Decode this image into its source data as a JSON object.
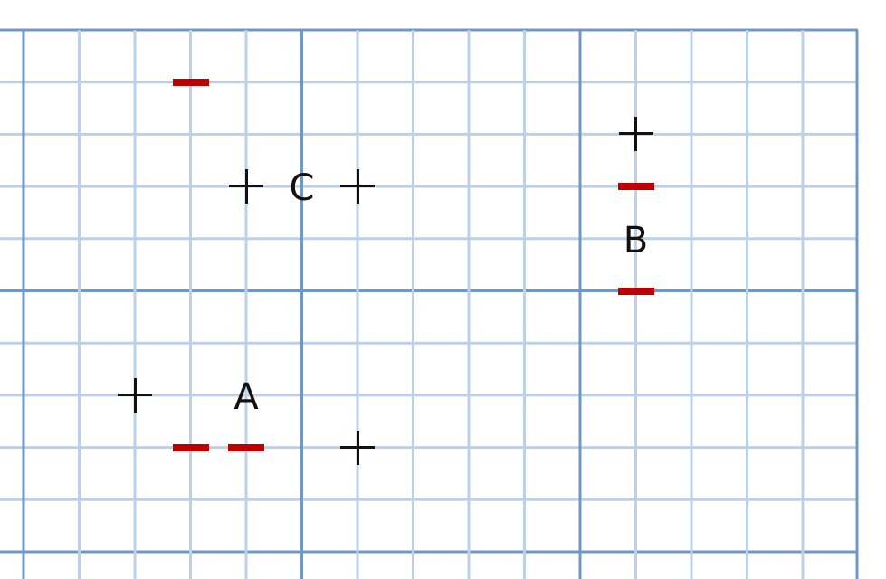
{
  "colors": {
    "grid_fine": "#bcd1e8",
    "grid_major": "#6f98c8",
    "plus": "#111111",
    "minus": "#c00000",
    "label": "#111111"
  },
  "labels": [
    {
      "id": "A",
      "text": "A",
      "col": 4,
      "row": 7
    },
    {
      "id": "B",
      "text": "B",
      "col": 11,
      "row": 4
    },
    {
      "id": "C",
      "text": "C",
      "col": 5,
      "row": 3
    }
  ],
  "charges": [
    {
      "sign": "minus",
      "col": 3,
      "row": 1
    },
    {
      "sign": "plus",
      "col": 4,
      "row": 3
    },
    {
      "sign": "plus",
      "col": 6,
      "row": 3
    },
    {
      "sign": "plus",
      "col": 11,
      "row": 2
    },
    {
      "sign": "minus",
      "col": 11,
      "row": 3
    },
    {
      "sign": "minus",
      "col": 11,
      "row": 5
    },
    {
      "sign": "plus",
      "col": 2,
      "row": 7
    },
    {
      "sign": "minus",
      "col": 3,
      "row": 8
    },
    {
      "sign": "minus",
      "col": 4,
      "row": 8
    },
    {
      "sign": "plus",
      "col": 6,
      "row": 8
    }
  ]
}
